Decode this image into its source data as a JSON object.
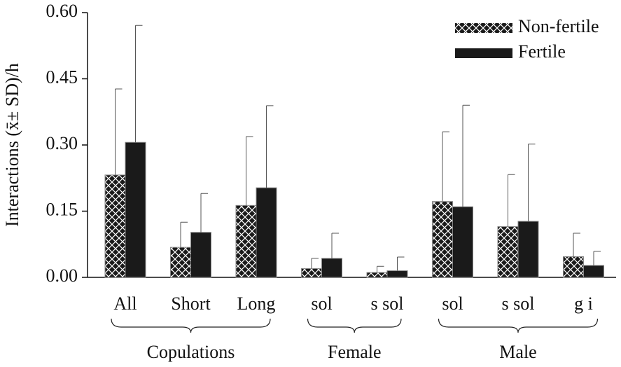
{
  "chart_data": {
    "type": "bar",
    "ylabel": "Interactions (x̄± SD)/h",
    "categories": [
      "All",
      "Short",
      "Long",
      "sol",
      "s sol",
      "sol",
      "s sol",
      "g i"
    ],
    "groups": [
      {
        "name": "Copulations",
        "count": 3
      },
      {
        "name": "Female",
        "count": 2
      },
      {
        "name": "Male",
        "count": 3
      }
    ],
    "series": [
      {
        "name": "Non-fertile",
        "color": "#1a1a1a",
        "hatch": true,
        "values": [
          0.232,
          0.068,
          0.163,
          0.02,
          0.011,
          0.172,
          0.115,
          0.047
        ],
        "errors": [
          0.195,
          0.057,
          0.156,
          0.023,
          0.014,
          0.158,
          0.118,
          0.053
        ]
      },
      {
        "name": "Fertile",
        "color": "#1a1a1a",
        "hatch": false,
        "values": [
          0.306,
          0.102,
          0.203,
          0.043,
          0.015,
          0.16,
          0.127,
          0.027
        ],
        "errors": [
          0.265,
          0.088,
          0.186,
          0.057,
          0.031,
          0.23,
          0.175,
          0.032
        ]
      }
    ],
    "ylim": [
      0,
      0.6
    ],
    "yticks": [
      {
        "value": 0,
        "label": "0.00"
      },
      {
        "value": 0.15,
        "label": "0.15"
      },
      {
        "value": 0.3,
        "label": "0.30"
      },
      {
        "value": 0.45,
        "label": "0.45"
      },
      {
        "value": 0.6,
        "label": "0.60"
      }
    ],
    "legend": "top-right"
  }
}
